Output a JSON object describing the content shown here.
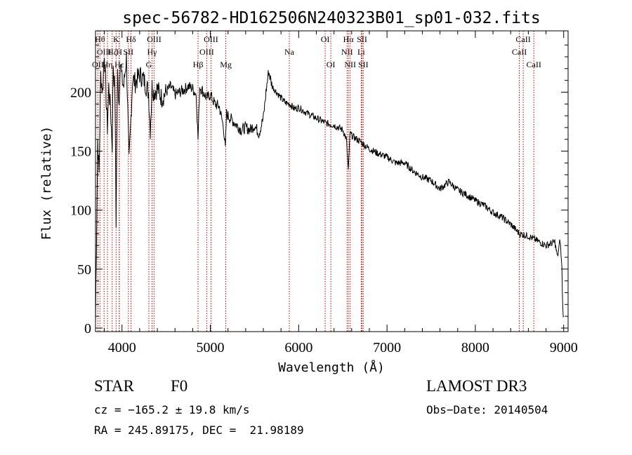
{
  "chart_data": {
    "type": "line",
    "title": "spec-56782-HD162506N240323B01_sp01-032.fits",
    "xlabel": "Wavelength (Å)",
    "ylabel": "Flux (relative)",
    "xlim": [
      3700,
      9050
    ],
    "ylim": [
      -3,
      252
    ],
    "xticks": [
      4000,
      5000,
      6000,
      7000,
      8000,
      9000
    ],
    "yticks": [
      0,
      50,
      100,
      150,
      200
    ],
    "series": [
      {
        "name": "spectrum",
        "color": "#000000",
        "x": [
          3700,
          3710,
          3725,
          3740,
          3760,
          3780,
          3800,
          3820,
          3835,
          3850,
          3870,
          3889,
          3900,
          3920,
          3933,
          3950,
          3968,
          3980,
          4000,
          4020,
          4050,
          4080,
          4102,
          4120,
          4150,
          4200,
          4250,
          4300,
          4320,
          4340,
          4360,
          4400,
          4450,
          4500,
          4550,
          4600,
          4650,
          4700,
          4750,
          4800,
          4840,
          4861,
          4880,
          4920,
          4960,
          5000,
          5050,
          5100,
          5150,
          5170,
          5183,
          5200,
          5250,
          5300,
          5350,
          5400,
          5450,
          5500,
          5550,
          5600,
          5630,
          5660,
          5700,
          5750,
          5800,
          5850,
          5900,
          5950,
          6000,
          6100,
          6200,
          6300,
          6400,
          6500,
          6540,
          6563,
          6580,
          6620,
          6700,
          6800,
          6900,
          7000,
          7100,
          7200,
          7300,
          7400,
          7500,
          7600,
          7700,
          7800,
          7900,
          8000,
          8100,
          8200,
          8300,
          8400,
          8500,
          8600,
          8700,
          8800,
          8900,
          8930,
          8960,
          8980,
          8990,
          9000
        ],
        "y": [
          5,
          70,
          160,
          130,
          215,
          200,
          235,
          195,
          170,
          205,
          185,
          155,
          225,
          200,
          90,
          215,
          190,
          230,
          210,
          205,
          230,
          140,
          180,
          212,
          208,
          215,
          210,
          200,
          168,
          205,
          200,
          203,
          195,
          200,
          205,
          198,
          200,
          202,
          205,
          203,
          198,
          160,
          205,
          200,
          195,
          198,
          190,
          188,
          170,
          152,
          182,
          180,
          176,
          172,
          168,
          170,
          168,
          172,
          165,
          178,
          200,
          218,
          205,
          200,
          195,
          191,
          190,
          186,
          187,
          182,
          178,
          174,
          172,
          168,
          160,
          133,
          165,
          162,
          158,
          152,
          148,
          145,
          140,
          140,
          133,
          128,
          125,
          118,
          124,
          117,
          113,
          108,
          104,
          98,
          94,
          88,
          80,
          78,
          74,
          70,
          73,
          60,
          75,
          50,
          15,
          10
        ]
      }
    ],
    "lines": [
      {
        "w": 3727,
        "name": "OII",
        "row": 3
      },
      {
        "w": 3750,
        "name": "Hθ",
        "row": 1
      },
      {
        "w": 3797,
        "name": "OIII",
        "row": 2
      },
      {
        "w": 3835,
        "name": "Hη",
        "row": 3
      },
      {
        "w": 3889,
        "name": "Hζ",
        "row": 2
      },
      {
        "w": 3933,
        "name": "K",
        "row": 1
      },
      {
        "w": 3968,
        "name": "H",
        "row": 2
      },
      {
        "w": 3970,
        "name": "Hε",
        "row": 3
      },
      {
        "w": 4072,
        "name": "SII",
        "row": 2
      },
      {
        "w": 4102,
        "name": "Hδ",
        "row": 1
      },
      {
        "w": 4304,
        "name": "G",
        "row": 3
      },
      {
        "w": 4340,
        "name": "Hγ",
        "row": 2
      },
      {
        "w": 4363,
        "name": "OIII",
        "row": 1
      },
      {
        "w": 4861,
        "name": "Hβ",
        "row": 3
      },
      {
        "w": 4959,
        "name": "OIII",
        "row": 2
      },
      {
        "w": 5007,
        "name": "OIII",
        "row": 1
      },
      {
        "w": 5175,
        "name": "Mg",
        "row": 3
      },
      {
        "w": 5894,
        "name": "Na",
        "row": 2
      },
      {
        "w": 6300,
        "name": "OI",
        "row": 1
      },
      {
        "w": 6364,
        "name": "OI",
        "row": 3
      },
      {
        "w": 6548,
        "name": "NII",
        "row": 2
      },
      {
        "w": 6563,
        "name": "Hα",
        "row": 1
      },
      {
        "w": 6583,
        "name": "NII",
        "row": 3
      },
      {
        "w": 6708,
        "name": "Li",
        "row": 2
      },
      {
        "w": 6717,
        "name": "SII",
        "row": 1
      },
      {
        "w": 6731,
        "name": "SII",
        "row": 3
      },
      {
        "w": 8498,
        "name": "CaII",
        "row": 2
      },
      {
        "w": 8542,
        "name": "CaII",
        "row": 1
      },
      {
        "w": 8662,
        "name": "CaII",
        "row": 3
      }
    ],
    "line_color": "#cc0000"
  },
  "info": {
    "object_type": "STAR",
    "subclass": "F0",
    "survey": "LAMOST DR3",
    "redshift_text": "cz = −165.2 ± 19.8 km/s",
    "obs_date_text": "Obs−Date: 20140504",
    "coords_text": "RA = 245.89175, DEC =  21.98189"
  }
}
